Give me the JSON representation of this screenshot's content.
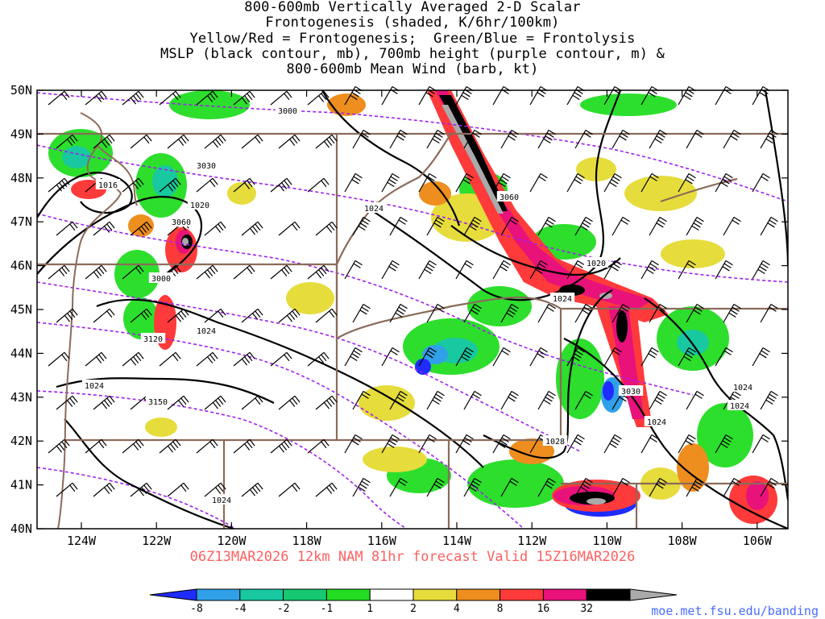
{
  "title": {
    "line1": "800-600mb Vertically Averaged 2-D Scalar",
    "line2": "Frontogenesis (shaded, K/6hr/100km)",
    "line3": "Yellow/Red = Frontogenesis;  Green/Blue = Frontolysis",
    "line4": "MSLP (black contour, mb), 700mb height (purple contour, m) &",
    "line5": "800-600mb Mean Wind (barb, kt)"
  },
  "valid_line": "06Z13MAR2026 12km NAM 81hr forecast Valid 15Z16MAR2026",
  "credit": "moe.met.fsu.edu/banding",
  "lat_labels": [
    "50N",
    "49N",
    "48N",
    "47N",
    "46N",
    "45N",
    "44N",
    "43N",
    "42N",
    "41N",
    "40N"
  ],
  "lon_labels": [
    "124W",
    "122W",
    "120W",
    "118W",
    "116W",
    "114W",
    "112W",
    "110W",
    "108W",
    "106W"
  ],
  "colorbar": {
    "ticks": [
      "-8",
      "-4",
      "-2",
      "-1",
      "1",
      "2",
      "4",
      "8",
      "16",
      "32"
    ],
    "colors": [
      "#1f2cff",
      "#30a0e8",
      "#18c8a0",
      "#16c870",
      "#22dd22",
      "#ffffff",
      "#e6dc3c",
      "#ee8e1e",
      "#ff3a3a",
      "#e8127a",
      "#000000",
      "#aaaaaa"
    ]
  },
  "mslp_labels": [
    "1016",
    "1020",
    "1024",
    "1024",
    "1024",
    "1020",
    "1024",
    "1024",
    "1024",
    "1028",
    "1024",
    "1024"
  ],
  "height_labels": [
    "3000",
    "3030",
    "3060",
    "3000",
    "3120",
    "3150",
    "3060",
    "3030"
  ],
  "colors": {
    "mslp": "#000000",
    "height": "#a020f0",
    "border": "#8b6b5a",
    "yellow": "#e6dc3c",
    "orange": "#ee8e1e",
    "red": "#ff3a3a",
    "magenta": "#e8127a",
    "green": "#22dd22",
    "teal": "#18c8a0",
    "cyan": "#30a0e8",
    "blue": "#1f2cff",
    "black": "#000000",
    "gray": "#aaaaaa"
  }
}
